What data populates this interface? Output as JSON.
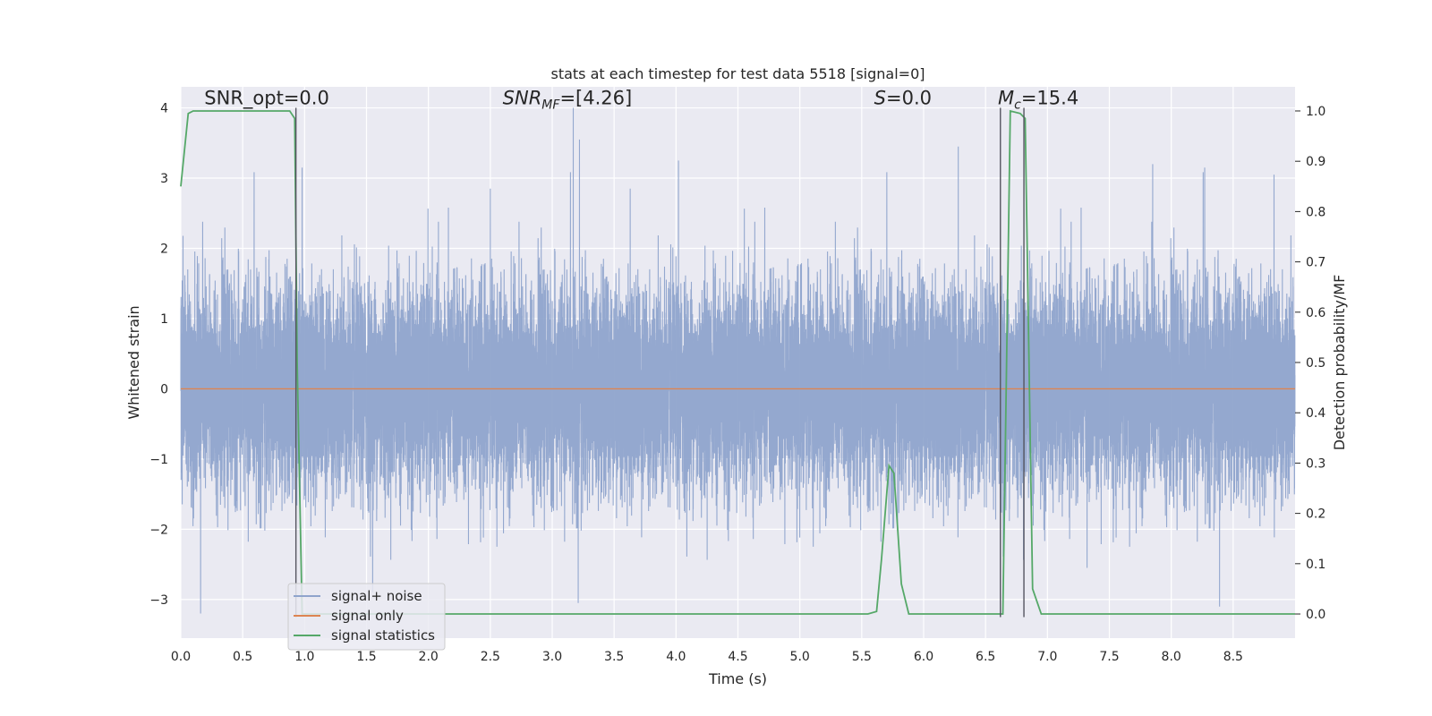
{
  "chart_data": {
    "type": "line",
    "title": "stats at each timestep for test data 5518 [signal=0]",
    "xlabel": "Time (s)",
    "ylabel": "Whitened strain",
    "ylabel_right": "Detection probability/MF",
    "xlim": [
      0.0,
      9.0
    ],
    "ylim": [
      -3.55,
      4.3
    ],
    "ylim_right": [
      -0.048,
      1.048
    ],
    "x_ticks": [
      0.0,
      0.5,
      1.0,
      1.5,
      2.0,
      2.5,
      3.0,
      3.5,
      4.0,
      4.5,
      5.0,
      5.5,
      6.0,
      6.5,
      7.0,
      7.5,
      8.0,
      8.5
    ],
    "x_tick_labels": [
      "0.0",
      "0.5",
      "1.0",
      "1.5",
      "2.0",
      "2.5",
      "3.0",
      "3.5",
      "4.0",
      "4.5",
      "5.0",
      "5.5",
      "6.0",
      "6.5",
      "7.0",
      "7.5",
      "8.0",
      "8.5"
    ],
    "y_ticks": [
      -3,
      -2,
      -1,
      0,
      1,
      2,
      3,
      4
    ],
    "y_tick_labels": [
      "−3",
      "−2",
      "−1",
      "0",
      "1",
      "2",
      "3",
      "4"
    ],
    "y_ticks_right": [
      0.0,
      0.1,
      0.2,
      0.3,
      0.4,
      0.5,
      0.6,
      0.7,
      0.8,
      0.9,
      1.0
    ],
    "y_tick_labels_right": [
      "0.0",
      "0.1",
      "0.2",
      "0.3",
      "0.4",
      "0.5",
      "0.6",
      "0.7",
      "0.8",
      "0.9",
      "1.0"
    ],
    "grid": true,
    "annotations": [
      {
        "id": "snr-opt",
        "text": "SNR_opt=0.0",
        "x": 0.19,
        "y": 4.05
      },
      {
        "id": "snr-mf",
        "text": "SNR_MF=[4.26]",
        "x": 2.6,
        "y": 4.05
      },
      {
        "id": "s-stat",
        "text": "S=0.0",
        "x": 5.6,
        "y": 4.05
      },
      {
        "id": "mc",
        "text": "M_c=15.4",
        "x": 6.6,
        "y": 4.05
      }
    ],
    "vertical_lines": [
      0.93,
      6.62,
      6.81
    ],
    "legend_location": "lower-left",
    "series": [
      {
        "name": "signal+ noise",
        "color": "#8fa4cc",
        "axis": "left",
        "kind": "noise",
        "sample_rate_hz": 2048,
        "std": 0.72,
        "peaks": [
          {
            "x": 3.17,
            "y": 4.0
          },
          {
            "x": 3.22,
            "y": 3.55
          },
          {
            "x": 4.02,
            "y": 3.25
          },
          {
            "x": 6.28,
            "y": 3.45
          },
          {
            "x": 0.98,
            "y": 3.15
          },
          {
            "x": 7.85,
            "y": 3.2
          },
          {
            "x": 8.27,
            "y": 3.15
          },
          {
            "x": 8.83,
            "y": 3.05
          },
          {
            "x": 3.63,
            "y": 2.85
          },
          {
            "x": 0.16,
            "y": -3.2
          },
          {
            "x": 3.21,
            "y": -3.05
          },
          {
            "x": 8.39,
            "y": -3.1
          },
          {
            "x": 1.55,
            "y": -2.9
          },
          {
            "x": 7.32,
            "y": -2.55
          },
          {
            "x": 2.5,
            "y": 2.85
          }
        ]
      },
      {
        "name": "signal only",
        "color": "#dd8452",
        "axis": "left",
        "x": [
          0.0,
          9.0
        ],
        "y": [
          0.0,
          0.0
        ]
      },
      {
        "name": "signal statistics",
        "color": "#55a868",
        "axis": "right",
        "x": [
          0.0,
          0.06,
          0.1,
          0.2,
          0.3,
          0.5,
          0.7,
          0.88,
          0.92,
          0.94,
          0.98,
          1.0,
          2.0,
          4.0,
          5.55,
          5.62,
          5.66,
          5.72,
          5.76,
          5.82,
          5.88,
          6.0,
          6.5,
          6.6,
          6.64,
          6.7,
          6.78,
          6.82,
          6.88,
          6.95,
          7.2,
          8.0,
          9.0
        ],
        "y": [
          0.85,
          0.995,
          1.0,
          1.0,
          1.0,
          1.0,
          1.0,
          1.0,
          0.985,
          0.5,
          0.0,
          0.0,
          0.0,
          0.0,
          0.0,
          0.005,
          0.11,
          0.295,
          0.28,
          0.06,
          0.0,
          0.0,
          0.0,
          0.0,
          0.0,
          1.0,
          0.995,
          0.985,
          0.05,
          0.0,
          0.0,
          0.0,
          0.0
        ]
      }
    ]
  }
}
